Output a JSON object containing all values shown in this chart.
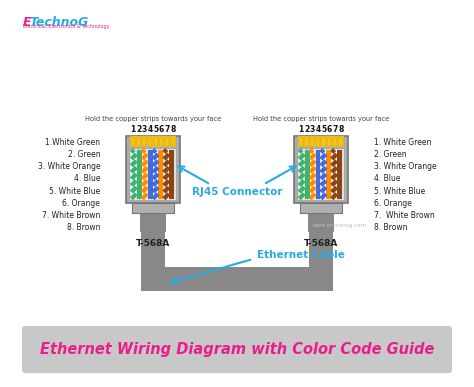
{
  "title": "Ethernet Wiring Diagram with Color Code Guide",
  "title_color": "#e91e8c",
  "title_bg": "#c8c8c8",
  "bg_color": "#ffffff",
  "instruction": "Hold the copper strips towards your face",
  "pin_numbers": [
    "1",
    "2",
    "3",
    "4",
    "5",
    "6",
    "7",
    "8"
  ],
  "left_labels": [
    "1.White Green",
    "2. Green",
    "3. White Orange",
    "4. Blue",
    "5. White Blue",
    "6. Orange",
    "7. White Brown",
    "8. Brown"
  ],
  "right_labels": [
    "1. White Green",
    "2. Green",
    "3. White Orange",
    "4. Blue",
    "5. White Blue",
    "6. Orange",
    "7.  White Brown",
    "8. Brown"
  ],
  "connector_label": "RJ45 Connector",
  "connector_label_color": "#29abe2",
  "cable_label": "Ethernet Cable",
  "cable_label_color": "#29abe2",
  "standard_label": "T-568A",
  "connector_body_color": "#aaaaaa",
  "connector_face_color": "#e0e0e0",
  "cable_color": "#888888",
  "wire_display_colors": [
    {
      "base": "#ffffff",
      "stripe": "#3cb371"
    },
    {
      "base": "#3cb371",
      "stripe": null
    },
    {
      "base": "#ffffff",
      "stripe": "#ff8c00"
    },
    {
      "base": "#4169e1",
      "stripe": null
    },
    {
      "base": "#ffffff",
      "stripe": "#4169e1"
    },
    {
      "base": "#ff8c00",
      "stripe": null
    },
    {
      "base": "#ffffff",
      "stripe": "#8b4513"
    },
    {
      "base": "#8b4513",
      "stripe": null
    }
  ],
  "logo_E_color": "#e91e8c",
  "logo_rest_color": "#29abe2",
  "logo_sub_color": "#e91e8c",
  "watermark_color": "#bbbbbb"
}
